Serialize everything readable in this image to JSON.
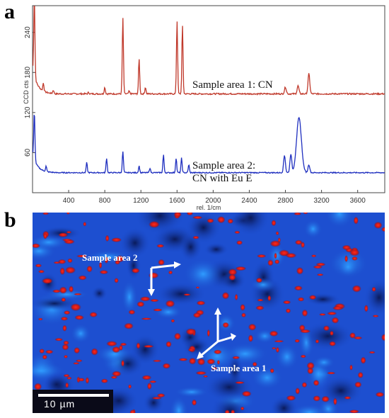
{
  "panels": {
    "a": "a",
    "b": "b"
  },
  "chart_data": {
    "type": "line",
    "xlabel": "rel. 1/cm",
    "ylabel": "CCD cts",
    "xlim": [
      0,
      3900
    ],
    "x_ticks": [
      400,
      800,
      1200,
      1600,
      2000,
      2400,
      2800,
      3200,
      3600
    ],
    "y_ticks": [
      60,
      120,
      180,
      240
    ],
    "grid": false,
    "series": [
      {
        "name": "Sample area 1: CN",
        "color": "#c0392b",
        "peaks": [
          {
            "x": 20,
            "y": 268
          },
          {
            "x": 120,
            "y": 160
          },
          {
            "x": 230,
            "y": 153
          },
          {
            "x": 620,
            "y": 150
          },
          {
            "x": 800,
            "y": 158
          },
          {
            "x": 1000,
            "y": 262
          },
          {
            "x": 1070,
            "y": 152
          },
          {
            "x": 1180,
            "y": 200
          },
          {
            "x": 1250,
            "y": 158
          },
          {
            "x": 1600,
            "y": 258
          },
          {
            "x": 1660,
            "y": 250
          },
          {
            "x": 2800,
            "y": 158
          },
          {
            "x": 2940,
            "y": 160
          },
          {
            "x": 3060,
            "y": 178
          }
        ]
      },
      {
        "name": "Sample area 2: CN with Eu E",
        "color": "#1f2fbf",
        "peaks": [
          {
            "x": 20,
            "y": 103
          },
          {
            "x": 150,
            "y": 38
          },
          {
            "x": 600,
            "y": 45
          },
          {
            "x": 820,
            "y": 52
          },
          {
            "x": 1000,
            "y": 62
          },
          {
            "x": 1180,
            "y": 40
          },
          {
            "x": 1300,
            "y": 37
          },
          {
            "x": 1450,
            "y": 57
          },
          {
            "x": 1590,
            "y": 52
          },
          {
            "x": 1650,
            "y": 52
          },
          {
            "x": 1730,
            "y": 42
          },
          {
            "x": 2790,
            "y": 56
          },
          {
            "x": 2860,
            "y": 58
          },
          {
            "x": 2950,
            "y": 112
          },
          {
            "x": 3060,
            "y": 42
          }
        ]
      }
    ],
    "annotations": [
      "Sample area 1: CN",
      "Sample area 2:",
      "CN with Eu E"
    ]
  },
  "map": {
    "label_area2": "Sample area 2",
    "label_area1": "Sample area 1",
    "scale_bar": "10 µm"
  }
}
